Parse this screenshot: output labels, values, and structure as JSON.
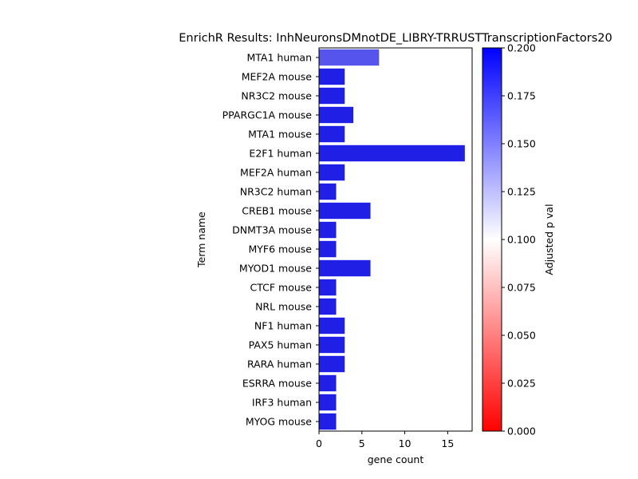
{
  "chart_data": {
    "type": "bar",
    "orientation": "horizontal",
    "title": "EnrichR Results: InhNeuronsDMnotDE_LIBRY-TRRUSTTranscriptionFactors20",
    "xlabel": "gene count",
    "ylabel": "Term name",
    "xlim": [
      0,
      17.85
    ],
    "xticks": [
      "0",
      "5",
      "10",
      "15"
    ],
    "grid": false,
    "categories": [
      "MTA1 human",
      "MEF2A mouse",
      "NR3C2 mouse",
      "PPARGC1A mouse",
      "MTA1 mouse",
      "E2F1 human",
      "MEF2A human",
      "NR3C2 human",
      "CREB1 mouse",
      "DNMT3A mouse",
      "MYF6 mouse",
      "MYOD1 mouse",
      "CTCF mouse",
      "NRL mouse",
      "NF1 human",
      "PAX5 human",
      "RARA human",
      "ESRRA mouse",
      "IRF3 human",
      "MYOG mouse"
    ],
    "values": [
      7,
      3,
      3,
      4,
      3,
      17,
      3,
      2,
      6,
      2,
      2,
      6,
      2,
      2,
      3,
      3,
      3,
      2,
      2,
      2
    ],
    "bar_colors": [
      "#5555ee",
      "#1f1fe5",
      "#1f1fe5",
      "#1f1fe5",
      "#1f1fe5",
      "#1f1fe5",
      "#1f1fe5",
      "#1f1fe5",
      "#1f1fe5",
      "#1f1fe5",
      "#1f1fe5",
      "#1f1fe5",
      "#1f1fe5",
      "#1f1fe5",
      "#1f1fe5",
      "#1f1fe5",
      "#1f1fe5",
      "#1f1fe5",
      "#1f1fe5",
      "#1f1fe5"
    ],
    "colorbar": {
      "label": "Adjusted p val",
      "range": [
        0,
        0.2
      ],
      "ticks": [
        "0.000",
        "0.025",
        "0.050",
        "0.075",
        "0.100",
        "0.125",
        "0.150",
        "0.175",
        "0.200"
      ],
      "colors": [
        "#ff0000",
        "#ffffff",
        "#0000ff"
      ]
    }
  }
}
